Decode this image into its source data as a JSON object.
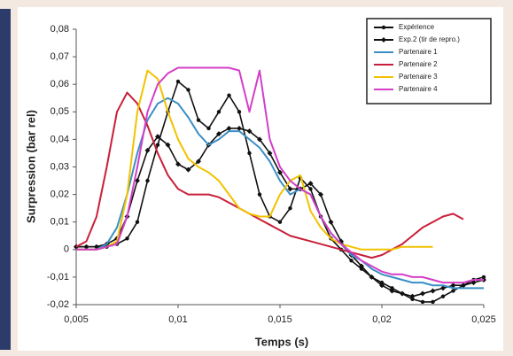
{
  "chart_data": {
    "type": "line",
    "x_label": "Temps (s)",
    "y_label": "Surpression (bar rel)",
    "x": [
      0.005,
      0.0055,
      0.006,
      0.0065,
      0.007,
      0.0075,
      0.008,
      0.0085,
      0.009,
      0.0095,
      0.01,
      0.0105,
      0.011,
      0.0115,
      0.012,
      0.0125,
      0.013,
      0.0135,
      0.014,
      0.0145,
      0.015,
      0.0155,
      0.016,
      0.0165,
      0.017,
      0.0175,
      0.018,
      0.0185,
      0.019,
      0.0195,
      0.02,
      0.0205,
      0.021,
      0.0215,
      0.022,
      0.0225,
      0.023,
      0.0235,
      0.024,
      0.0245,
      0.025
    ],
    "series": [
      {
        "name": "Expérience",
        "color": "#111111",
        "marker": "circle",
        "values": [
          0.001,
          0.001,
          0.001,
          0.001,
          0.002,
          0.004,
          0.01,
          0.025,
          0.038,
          0.05,
          0.061,
          0.058,
          0.047,
          0.044,
          0.05,
          0.056,
          0.05,
          0.035,
          0.02,
          0.012,
          0.01,
          0.015,
          0.026,
          0.022,
          0.012,
          0.004,
          0,
          -0.004,
          -0.007,
          -0.01,
          -0.012,
          -0.014,
          -0.016,
          -0.018,
          -0.019,
          -0.019,
          -0.017,
          -0.015,
          -0.013,
          -0.011,
          -0.01
        ]
      },
      {
        "name": "Exp.2 (tir de repro.)",
        "color": "#111111",
        "marker": "diamond",
        "values": [
          0.001,
          0.001,
          0.001,
          0.002,
          0.004,
          0.012,
          0.025,
          0.036,
          0.041,
          0.038,
          0.031,
          0.029,
          0.032,
          0.038,
          0.042,
          0.044,
          0.044,
          0.043,
          0.04,
          0.035,
          0.028,
          0.022,
          0.022,
          0.024,
          0.02,
          0.01,
          0.003,
          -0.002,
          -0.006,
          -0.01,
          -0.013,
          -0.015,
          -0.016,
          -0.017,
          -0.016,
          -0.015,
          -0.014,
          -0.013,
          -0.013,
          -0.012,
          -0.011
        ]
      },
      {
        "name": "Partenaire 1",
        "color": "#3b8fc4",
        "values": [
          0,
          0,
          0,
          0.002,
          0.008,
          0.02,
          0.035,
          0.047,
          0.053,
          0.055,
          0.053,
          0.048,
          0.042,
          0.038,
          0.04,
          0.043,
          0.043,
          0.04,
          0.037,
          0.032,
          0.025,
          0.02,
          0.022,
          0.02,
          0.012,
          0.006,
          0.002,
          -0.002,
          -0.004,
          -0.007,
          -0.009,
          -0.01,
          -0.011,
          -0.012,
          -0.012,
          -0.013,
          -0.013,
          -0.014,
          -0.014,
          -0.014,
          -0.014
        ]
      },
      {
        "name": "Partenaire 2",
        "color": "#c8203a",
        "values": [
          0.001,
          0.003,
          0.012,
          0.03,
          0.05,
          0.057,
          0.053,
          0.045,
          0.035,
          0.027,
          0.022,
          0.02,
          0.02,
          0.02,
          0.019,
          0.017,
          0.015,
          0.013,
          0.011,
          0.009,
          0.007,
          0.005,
          0.004,
          0.003,
          0.002,
          0.001,
          0,
          -0.001,
          -0.002,
          -0.003,
          -0.002,
          0,
          0.002,
          0.005,
          0.008,
          0.01,
          0.012,
          0.013,
          0.011,
          null,
          null
        ]
      },
      {
        "name": "Partenaire 3",
        "color": "#f2c200",
        "values": [
          0,
          0,
          0,
          0.001,
          0.003,
          0.02,
          0.05,
          0.065,
          0.062,
          0.05,
          0.04,
          0.033,
          0.03,
          0.028,
          0.025,
          0.02,
          0.015,
          0.013,
          0.012,
          0.012,
          0.02,
          0.025,
          0.027,
          0.014,
          0.008,
          0.004,
          0.002,
          0.001,
          0,
          0,
          0,
          0,
          0.001,
          0.001,
          0.001,
          0.001,
          null,
          null,
          null,
          null,
          null
        ]
      },
      {
        "name": "Partenaire 4",
        "color": "#d43fc8",
        "values": [
          0,
          0,
          0,
          0.001,
          0.002,
          0.012,
          0.03,
          0.05,
          0.06,
          0.064,
          0.066,
          0.066,
          0.066,
          0.066,
          0.066,
          0.066,
          0.065,
          0.05,
          0.065,
          0.04,
          0.03,
          0.025,
          0.022,
          0.02,
          0.012,
          0.006,
          0.002,
          -0.001,
          -0.004,
          -0.006,
          -0.008,
          -0.009,
          -0.009,
          -0.01,
          -0.01,
          -0.011,
          -0.012,
          -0.012,
          -0.012,
          -0.011,
          -0.011
        ]
      }
    ],
    "xlim": [
      0.005,
      0.025
    ],
    "xticks": [
      {
        "value": 0.005,
        "label": "0,005"
      },
      {
        "value": 0.01,
        "label": "0,01"
      },
      {
        "value": 0.015,
        "label": "0,015"
      },
      {
        "value": 0.02,
        "label": "0,02"
      },
      {
        "value": 0.025,
        "label": "0,025"
      }
    ],
    "ylim": [
      -0.02,
      0.08
    ],
    "yticks": [
      {
        "value": -0.02,
        "label": "-0,02"
      },
      {
        "value": -0.01,
        "label": "-0,01"
      },
      0,
      {
        "value": 0.01,
        "label": "0,01"
      },
      {
        "value": 0.02,
        "label": "0,02"
      },
      {
        "value": 0.03,
        "label": "0,03"
      },
      {
        "value": 0.04,
        "label": "0,04"
      },
      {
        "value": 0.05,
        "label": "0,05"
      },
      {
        "value": 0.06,
        "label": "0,06"
      },
      {
        "value": 0.07,
        "label": "0,07"
      },
      {
        "value": 0.08,
        "label": "0,08"
      }
    ],
    "grid": false,
    "legend": "top-right"
  }
}
